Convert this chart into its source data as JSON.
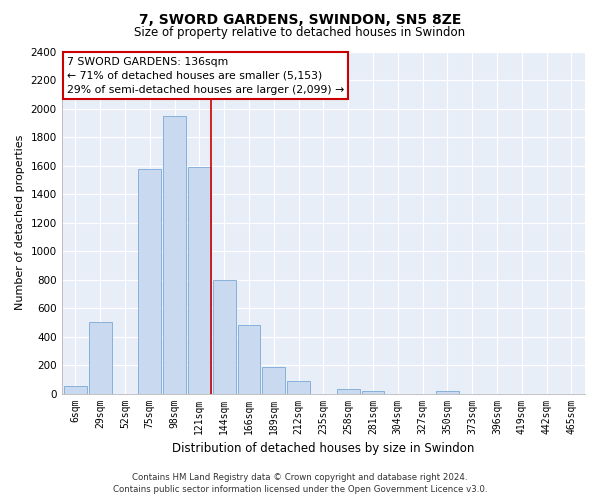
{
  "title": "7, SWORD GARDENS, SWINDON, SN5 8ZE",
  "subtitle": "Size of property relative to detached houses in Swindon",
  "xlabel": "Distribution of detached houses by size in Swindon",
  "ylabel": "Number of detached properties",
  "bar_labels": [
    "6sqm",
    "29sqm",
    "52sqm",
    "75sqm",
    "98sqm",
    "121sqm",
    "144sqm",
    "166sqm",
    "189sqm",
    "212sqm",
    "235sqm",
    "258sqm",
    "281sqm",
    "304sqm",
    "327sqm",
    "350sqm",
    "373sqm",
    "396sqm",
    "419sqm",
    "442sqm",
    "465sqm"
  ],
  "bar_values": [
    50,
    500,
    0,
    1575,
    1950,
    1590,
    800,
    480,
    185,
    90,
    0,
    30,
    20,
    0,
    0,
    15,
    0,
    0,
    0,
    0,
    0
  ],
  "bar_color": "#c9d9f0",
  "bar_edge_color": "#7ba8d4",
  "highlight_line_index": 5,
  "highlight_line_color": "#cc0000",
  "ylim": [
    0,
    2400
  ],
  "yticks": [
    0,
    200,
    400,
    600,
    800,
    1000,
    1200,
    1400,
    1600,
    1800,
    2000,
    2200,
    2400
  ],
  "annotation_title": "7 SWORD GARDENS: 136sqm",
  "annotation_line1": "← 71% of detached houses are smaller (5,153)",
  "annotation_line2": "29% of semi-detached houses are larger (2,099) →",
  "annotation_box_color": "#ffffff",
  "annotation_box_edge": "#cc0000",
  "footer_line1": "Contains HM Land Registry data © Crown copyright and database right 2024.",
  "footer_line2": "Contains public sector information licensed under the Open Government Licence v3.0.",
  "plot_bg_color": "#e8eef8",
  "fig_bg_color": "#ffffff",
  "grid_color": "#ffffff"
}
